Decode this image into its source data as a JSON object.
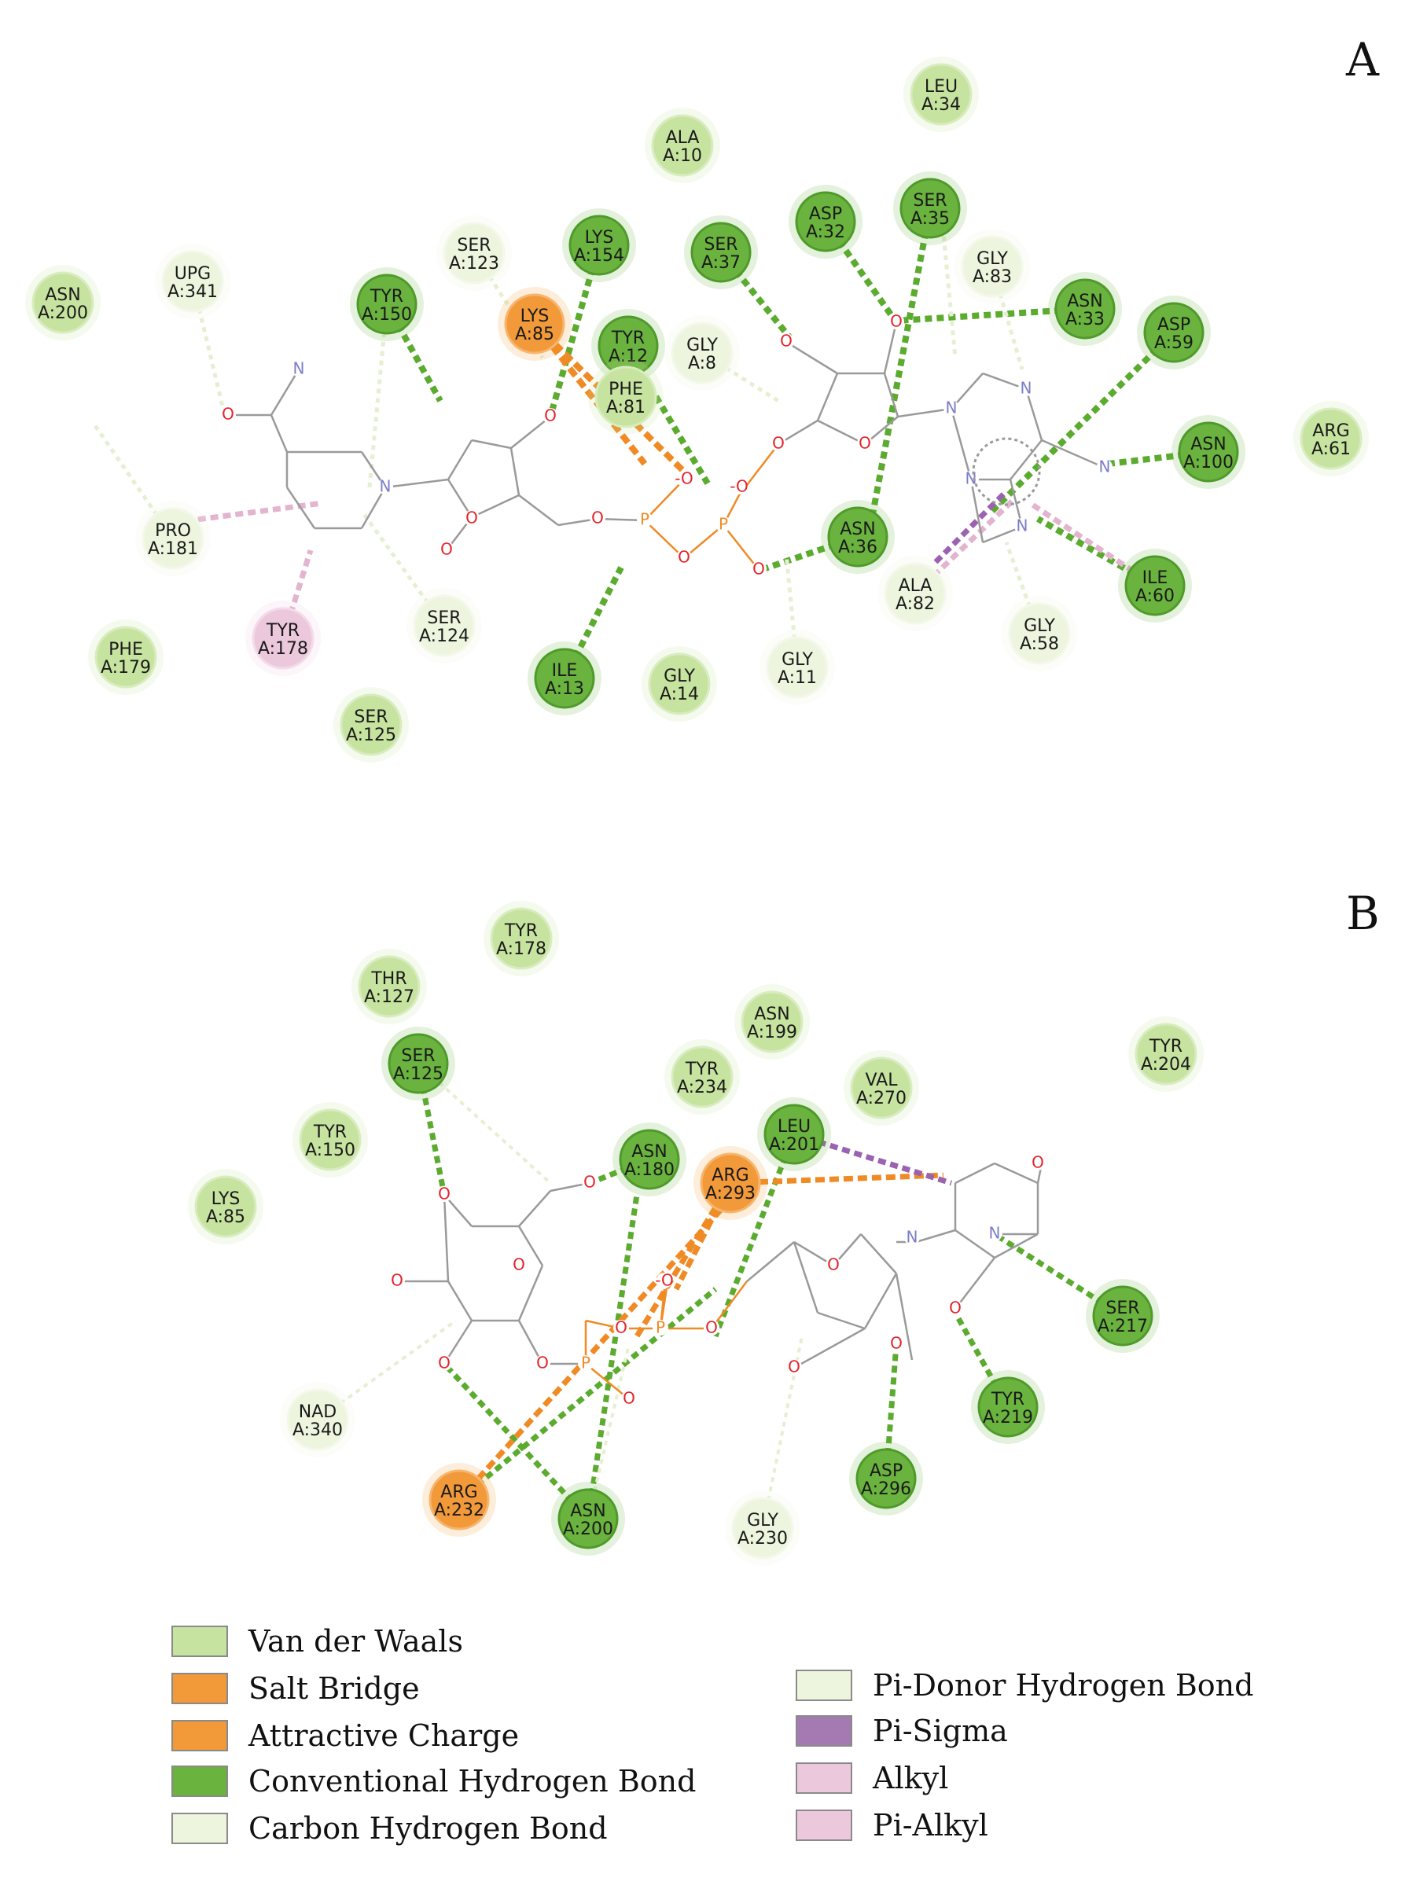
{
  "panels": [
    {
      "label": "A"
    },
    {
      "label": "B"
    }
  ],
  "colors": {
    "van_der_waals": "#c7e3a0",
    "salt_bridge": "#f2993a",
    "attractive_charge": "#f2993a",
    "conventional_h_bond": "#6ab33e",
    "carbon_h_bond": "#eef5df",
    "pi_donor_h_bond": "#eef5df",
    "pi_sigma": "#a57ab3",
    "alkyl": "#ecc8dd",
    "pi_alkyl": "#ecc8dd"
  },
  "panelA": {
    "residues": [
      {
        "name": "LEU",
        "id": "A:34",
        "kind": "vdw"
      },
      {
        "name": "ALA",
        "id": "A:10",
        "kind": "vdw"
      },
      {
        "name": "SER",
        "id": "A:35",
        "kind": "hbond"
      },
      {
        "name": "ASP",
        "id": "A:32",
        "kind": "hbond"
      },
      {
        "name": "SER",
        "id": "A:37",
        "kind": "hbond"
      },
      {
        "name": "LYS",
        "id": "A:154",
        "kind": "hbond"
      },
      {
        "name": "SER",
        "id": "A:123",
        "kind": "chb"
      },
      {
        "name": "GLY",
        "id": "A:83",
        "kind": "chb"
      },
      {
        "name": "ASN",
        "id": "A:33",
        "kind": "hbond"
      },
      {
        "name": "ASN",
        "id": "A:200",
        "kind": "vdw"
      },
      {
        "name": "UPG",
        "id": "A:341",
        "kind": "chb"
      },
      {
        "name": "TYR",
        "id": "A:150",
        "kind": "hbond"
      },
      {
        "name": "LYS",
        "id": "A:85",
        "kind": "salt"
      },
      {
        "name": "TYR",
        "id": "A:12",
        "kind": "hbond"
      },
      {
        "name": "PHE",
        "id": "A:81",
        "kind": "vdw"
      },
      {
        "name": "GLY",
        "id": "A:8",
        "kind": "chb"
      },
      {
        "name": "ASP",
        "id": "A:59",
        "kind": "hbond"
      },
      {
        "name": "ASN",
        "id": "A:100",
        "kind": "hbond"
      },
      {
        "name": "ARG",
        "id": "A:61",
        "kind": "vdw"
      },
      {
        "name": "PRO",
        "id": "A:181",
        "kind": "chb"
      },
      {
        "name": "ASN",
        "id": "A:36",
        "kind": "hbond"
      },
      {
        "name": "ALA",
        "id": "A:82",
        "kind": "chb"
      },
      {
        "name": "ILE",
        "id": "A:60",
        "kind": "hbond"
      },
      {
        "name": "TYR",
        "id": "A:178",
        "kind": "alkyl"
      },
      {
        "name": "SER",
        "id": "A:124",
        "kind": "chb"
      },
      {
        "name": "GLY",
        "id": "A:58",
        "kind": "chb"
      },
      {
        "name": "PHE",
        "id": "A:179",
        "kind": "vdw"
      },
      {
        "name": "ILE",
        "id": "A:13",
        "kind": "hbond"
      },
      {
        "name": "GLY",
        "id": "A:14",
        "kind": "vdw"
      },
      {
        "name": "GLY",
        "id": "A:11",
        "kind": "chb"
      },
      {
        "name": "SER",
        "id": "A:125",
        "kind": "vdw"
      }
    ]
  },
  "panelB": {
    "residues": [
      {
        "name": "TYR",
        "id": "A:178",
        "kind": "vdw"
      },
      {
        "name": "THR",
        "id": "A:127",
        "kind": "vdw"
      },
      {
        "name": "ASN",
        "id": "A:199",
        "kind": "vdw"
      },
      {
        "name": "TYR",
        "id": "A:204",
        "kind": "vdw"
      },
      {
        "name": "SER",
        "id": "A:125",
        "kind": "hbond"
      },
      {
        "name": "TYR",
        "id": "A:234",
        "kind": "vdw"
      },
      {
        "name": "VAL",
        "id": "A:270",
        "kind": "vdw"
      },
      {
        "name": "TYR",
        "id": "A:150",
        "kind": "vdw"
      },
      {
        "name": "LEU",
        "id": "A:201",
        "kind": "hbond"
      },
      {
        "name": "ASN",
        "id": "A:180",
        "kind": "hbond"
      },
      {
        "name": "ARG",
        "id": "A:293",
        "kind": "salt"
      },
      {
        "name": "LYS",
        "id": "A:85",
        "kind": "vdw"
      },
      {
        "name": "SER",
        "id": "A:217",
        "kind": "hbond"
      },
      {
        "name": "NAD",
        "id": "A:340",
        "kind": "chb"
      },
      {
        "name": "TYR",
        "id": "A:219",
        "kind": "hbond"
      },
      {
        "name": "ASP",
        "id": "A:296",
        "kind": "hbond"
      },
      {
        "name": "ARG",
        "id": "A:232",
        "kind": "salt"
      },
      {
        "name": "ASN",
        "id": "A:200",
        "kind": "hbond"
      },
      {
        "name": "GLY",
        "id": "A:230",
        "kind": "chb"
      }
    ]
  },
  "legend": {
    "left": [
      {
        "label": "Van der Waals",
        "color": "#c7e3a0"
      },
      {
        "label": "Salt Bridge",
        "color": "#f2993a"
      },
      {
        "label": "Attractive Charge",
        "color": "#f2993a"
      },
      {
        "label": "Conventional Hydrogen Bond",
        "color": "#6ab33e"
      },
      {
        "label": "Carbon Hydrogen Bond",
        "color": "#eef5df"
      }
    ],
    "right": [
      {
        "label": "Pi-Donor Hydrogen Bond",
        "color": "#eef5df"
      },
      {
        "label": "Pi-Sigma",
        "color": "#a57ab3"
      },
      {
        "label": "Alkyl",
        "color": "#ecc8dd"
      },
      {
        "label": "Pi-Alkyl",
        "color": "#ecc8dd"
      }
    ]
  }
}
